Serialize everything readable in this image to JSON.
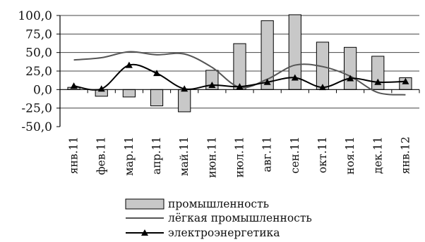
{
  "chart_data": {
    "type": "bar",
    "categories": [
      "янв.11",
      "фев.11",
      "мар.11",
      "апр.11",
      "май.11",
      "июн.11",
      "июл.11",
      "авг.11",
      "сен.11",
      "окт.11",
      "ноя.11",
      "дек.11",
      "янв.12"
    ],
    "ylim": [
      -50,
      100
    ],
    "yticks": [
      100,
      75,
      50,
      25,
      0,
      -25,
      -50
    ],
    "ytick_labels": [
      "100,0",
      "75,0",
      "50,0",
      "25,0",
      "0,0",
      "-25,0",
      "-50,0"
    ],
    "grid": true,
    "legend_position": "bottom",
    "series": [
      {
        "name": "промышленность",
        "type": "bar",
        "color": "#c8c8c8",
        "values": [
          3,
          -9,
          -10,
          -22,
          -30,
          26,
          62,
          93,
          101,
          64,
          57,
          45,
          16
        ]
      },
      {
        "name": "лёгкая промышленность",
        "type": "line",
        "color": "#555555",
        "smooth": true,
        "values": [
          40,
          43,
          51,
          47,
          48,
          30,
          3,
          14,
          33,
          31,
          18,
          -4,
          -7
        ]
      },
      {
        "name": "электроэнергетика",
        "type": "line",
        "color": "#000000",
        "marker": "triangle",
        "values": [
          5,
          1,
          33,
          22,
          1,
          6,
          4,
          10,
          16,
          3,
          15,
          10,
          11
        ]
      }
    ]
  }
}
